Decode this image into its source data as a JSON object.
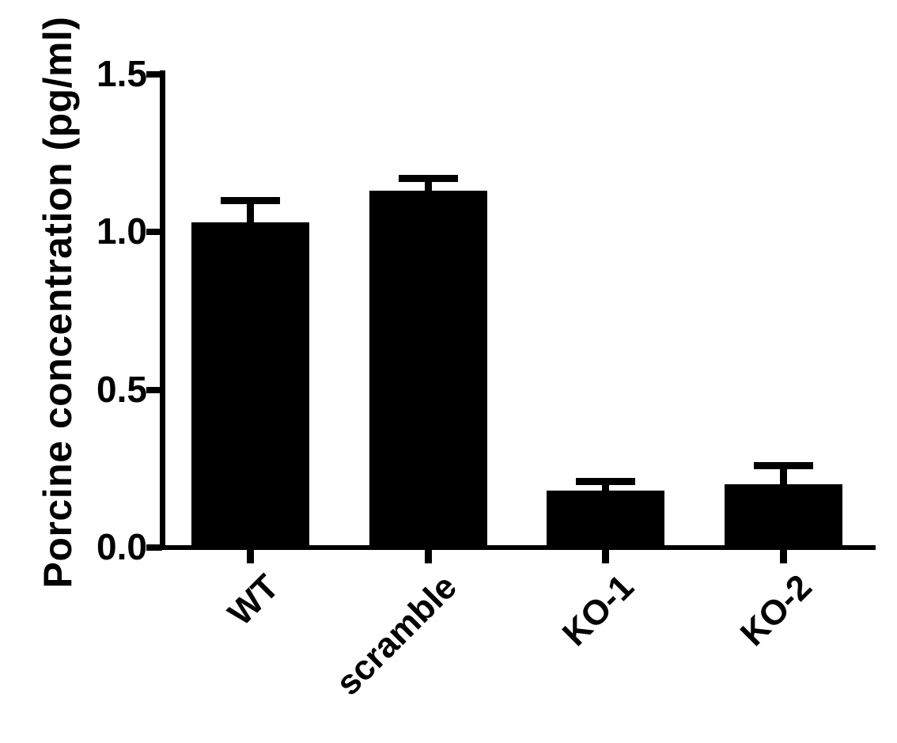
{
  "figure": {
    "background_color": "#ffffff",
    "foreground_color": "#000000"
  },
  "chart_data": {
    "type": "bar",
    "title": "",
    "xlabel": "",
    "ylabel": "Porcine concentration (pg/ml)",
    "categories": [
      "WT",
      "scramble",
      "KO-1",
      "KO-2"
    ],
    "series": [
      {
        "name": "Porcine concentration (pg/ml)",
        "values": [
          1.03,
          1.13,
          0.18,
          0.2
        ],
        "errors_plus": [
          0.07,
          0.04,
          0.03,
          0.06
        ]
      }
    ],
    "error_bar_style": "upper-only T caps",
    "bar_color": "#000000",
    "ylim": [
      0,
      1.5
    ],
    "yticks": [
      0,
      0.5,
      1,
      1.5
    ],
    "ytick_labels": [
      "0.0",
      "0.5",
      "1.0",
      "1.5"
    ],
    "x_tick_label_rotation_deg": 45,
    "grid": false,
    "legend": "none"
  }
}
